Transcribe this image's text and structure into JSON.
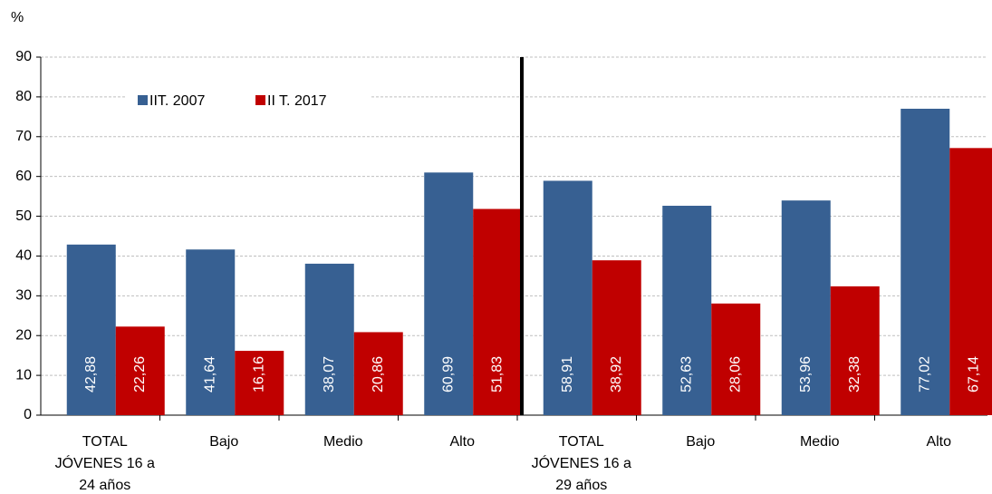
{
  "chart_data": {
    "type": "bar",
    "y_label": "%",
    "categories": [
      [
        "TOTAL",
        "JÓVENES 16 a",
        "24 años"
      ],
      [
        "Bajo"
      ],
      [
        "Medio"
      ],
      [
        "Alto"
      ],
      [
        "TOTAL",
        "JÓVENES 16 a",
        "29 años"
      ],
      [
        "Bajo"
      ],
      [
        "Medio"
      ],
      [
        "Alto"
      ]
    ],
    "series": [
      {
        "name": "IIT. 2007",
        "color": "#376092",
        "values": [
          42.88,
          41.64,
          38.07,
          60.99,
          58.91,
          52.63,
          53.96,
          77.02
        ],
        "value_labels": [
          "42,88",
          "41,64",
          "38,07",
          "60,99",
          "58,91",
          "52,63",
          "53,96",
          "77,02"
        ]
      },
      {
        "name": "II T. 2017",
        "color": "#c00000",
        "values": [
          22.26,
          16.16,
          20.86,
          51.83,
          38.92,
          28.06,
          32.38,
          67.14
        ],
        "value_labels": [
          "22,26",
          "16,16",
          "20,86",
          "51,83",
          "38,92",
          "28,06",
          "32,38",
          "67,14"
        ]
      }
    ],
    "ylim": [
      0,
      90
    ],
    "yticks": [
      0,
      10,
      20,
      30,
      40,
      50,
      60,
      70,
      80,
      90
    ],
    "grid": true,
    "legend": "top-left"
  }
}
